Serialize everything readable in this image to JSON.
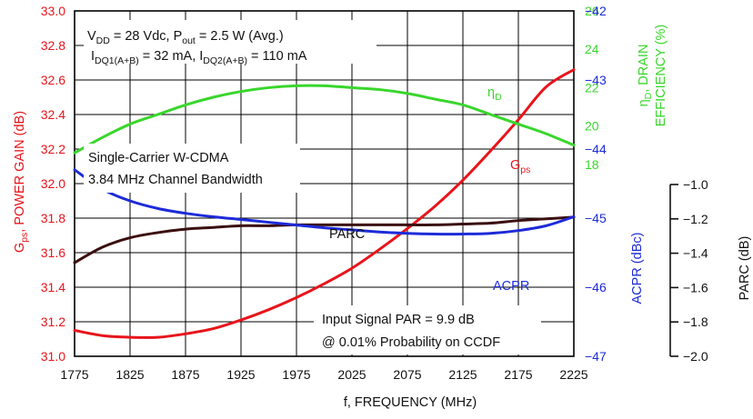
{
  "chart_data": {
    "type": "line",
    "xlabel": "f, FREQUENCY (MHz)",
    "x_ticks": [
      "1775",
      "1825",
      "1875",
      "1925",
      "1975",
      "2025",
      "2075",
      "2125",
      "2175",
      "2225"
    ],
    "xlim": [
      1775,
      2225
    ],
    "axes": {
      "gain": {
        "label_main": "G",
        "label_sub": "ps",
        "label_rest": ", POWER GAIN (dB)",
        "ylim": [
          31.0,
          33.0
        ],
        "ticks": [
          "31.0",
          "31.2",
          "31.4",
          "31.6",
          "31.8",
          "32.0",
          "32.2",
          "32.4",
          "32.6",
          "32.8",
          "33.0"
        ],
        "color": "#e8141b"
      },
      "efficiency": {
        "label_line1_main": "η",
        "label_line1_sub": "D",
        "label_line1_rest": ", DRAIN",
        "label_line2": "EFFICIENCY (%)",
        "ylim": [
          8,
          26
        ],
        "ticks": [
          "18",
          "20",
          "22",
          "24",
          "26"
        ],
        "color": "#39d62c"
      },
      "acpr": {
        "label": "ACPR (dBc)",
        "ylim": [
          -47,
          -42
        ],
        "ticks": [
          "−42",
          "−43",
          "−44",
          "−45",
          "−46",
          "−47"
        ],
        "color": "#1d2bd8"
      },
      "parc": {
        "label": "PARC (dB)",
        "ylim": [
          -2.0,
          -1.0
        ],
        "ticks": [
          "−1.0",
          "−1.2",
          "−1.4",
          "−1.6",
          "−1.8",
          "−2.0"
        ],
        "color": "#111111"
      }
    },
    "series": [
      {
        "name_main": "G",
        "name_sub": "ps",
        "axis": "gain",
        "color": "#e8141b",
        "x": [
          1775,
          1800,
          1825,
          1850,
          1875,
          1900,
          1925,
          1950,
          1975,
          2000,
          2025,
          2050,
          2075,
          2100,
          2125,
          2150,
          2175,
          2200,
          2225
        ],
        "y": [
          31.15,
          31.12,
          31.11,
          31.11,
          31.13,
          31.16,
          31.21,
          31.27,
          31.34,
          31.42,
          31.51,
          31.62,
          31.74,
          31.87,
          32.02,
          32.19,
          32.37,
          32.56,
          32.66
        ]
      },
      {
        "name_main": "η",
        "name_sub": "D",
        "axis": "efficiency",
        "color": "#39d62c",
        "x": [
          1775,
          1800,
          1825,
          1850,
          1875,
          1900,
          1925,
          1950,
          1975,
          2000,
          2025,
          2050,
          2075,
          2100,
          2125,
          2150,
          2175,
          2200,
          2225
        ],
        "y": [
          18.6,
          19.4,
          20.1,
          20.6,
          21.1,
          21.5,
          21.8,
          22.0,
          22.1,
          22.1,
          22.0,
          21.9,
          21.7,
          21.4,
          21.1,
          20.6,
          20.1,
          19.6,
          19.0
        ]
      },
      {
        "name": "PARC",
        "axis": "parc",
        "color": "#3b0f0f",
        "x": [
          1775,
          1800,
          1825,
          1850,
          1875,
          1900,
          1925,
          1950,
          1975,
          2000,
          2025,
          2050,
          2075,
          2100,
          2125,
          2150,
          2175,
          2200,
          2225
        ],
        "y": [
          -1.455,
          -1.365,
          -1.31,
          -1.28,
          -1.26,
          -1.25,
          -1.24,
          -1.24,
          -1.235,
          -1.235,
          -1.235,
          -1.235,
          -1.235,
          -1.235,
          -1.23,
          -1.225,
          -1.21,
          -1.2,
          -1.19
        ]
      },
      {
        "name": "ACPR",
        "axis": "acpr",
        "color": "#1d2bd8",
        "x": [
          1775,
          1800,
          1825,
          1850,
          1875,
          1900,
          1925,
          1950,
          1975,
          2000,
          2025,
          2050,
          2075,
          2100,
          2125,
          2150,
          2175,
          2200,
          2225
        ],
        "y": [
          -44.3,
          -44.58,
          -44.75,
          -44.86,
          -44.93,
          -44.98,
          -45.02,
          -45.06,
          -45.1,
          -45.14,
          -45.17,
          -45.2,
          -45.22,
          -45.23,
          -45.23,
          -45.22,
          -45.18,
          -45.11,
          -44.98
        ]
      }
    ],
    "annotations": {
      "cond1_pre": "V",
      "cond1_sub1": "DD",
      "cond1_mid": " = 28 Vdc, P",
      "cond1_sub2": "out",
      "cond1_post": " = 2.5 W (Avg.)",
      "cond2_pre": "I",
      "cond2_sub1": "DQ1(A+B)",
      "cond2_mid": " = 32 mA, I",
      "cond2_sub2": "DQ2(A+B)",
      "cond2_post": " = 110 mA",
      "carrier1": "Single-Carrier W-CDMA",
      "carrier2": "3.84 MHz Channel Bandwidth",
      "signal1": "Input Signal PAR = 9.9 dB",
      "signal2": "@ 0.01% Probability on CCDF"
    },
    "grid": true
  }
}
